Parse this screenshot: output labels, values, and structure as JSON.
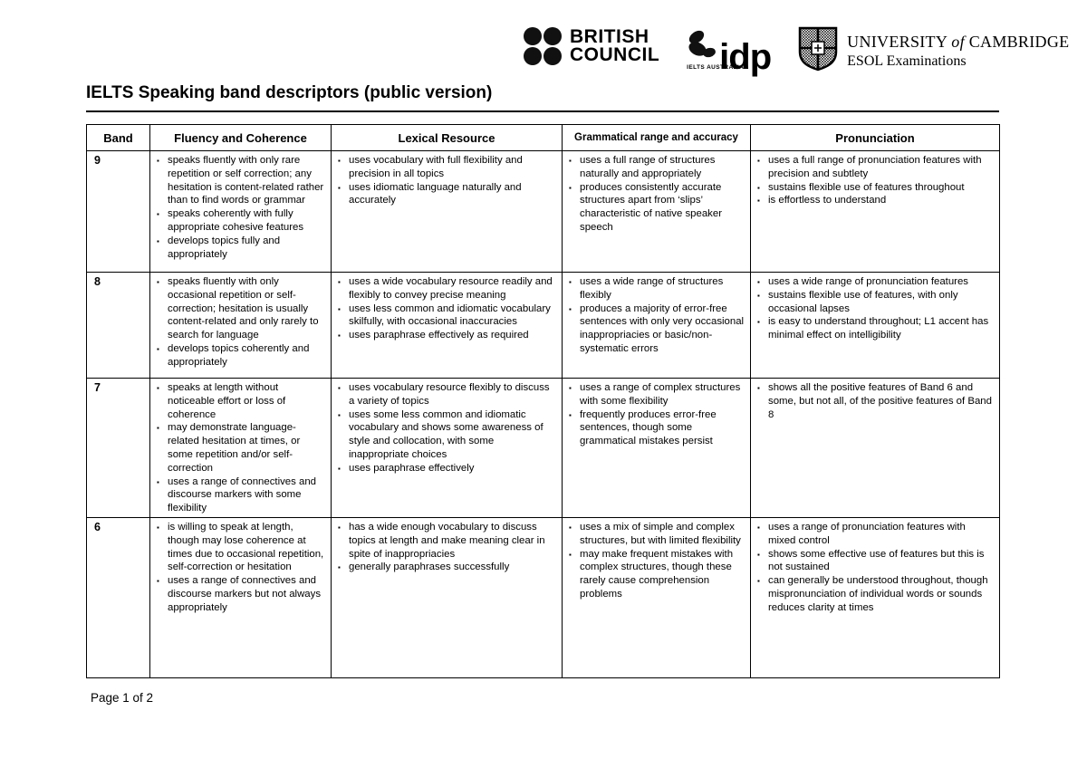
{
  "icons": {
    "bullet": "▪"
  },
  "header": {
    "british_council": {
      "line1": "BRITISH",
      "line2": "COUNCIL"
    },
    "idp": {
      "word": "idp",
      "subtext": "IELTS AUSTRALIA"
    },
    "cambridge": {
      "line1_a": "UNIVERSITY",
      "line1_b": "of",
      "line1_c": "CAMBRIDGE",
      "line2": "ESOL Examinations"
    },
    "title": "IELTS Speaking band descriptors (public version)"
  },
  "table": {
    "columns": [
      "Band",
      "Fluency and Coherence",
      "Lexical Resource",
      "Grammatical range and accuracy",
      "Pronunciation"
    ],
    "rows": [
      {
        "band": "9",
        "cells": [
          [
            "speaks fluently with only rare repetition or self correction; any hesitation is content-related rather than to find words or grammar",
            "speaks coherently with fully appropriate cohesive features",
            "develops topics fully and appropriately"
          ],
          [
            "uses vocabulary with full flexibility and precision in all topics",
            "uses idiomatic language naturally and accurately"
          ],
          [
            "uses a full range of structures naturally and appropriately",
            "produces consistently accurate structures apart from ‘slips’ characteristic of native speaker speech"
          ],
          [
            "uses a full range of pronunciation features with precision and subtlety",
            "sustains flexible use of features throughout",
            "is effortless to understand"
          ]
        ]
      },
      {
        "band": "8",
        "cells": [
          [
            "speaks fluently with only occasional repetition or self-correction; hesitation is usually content-related and only rarely to search for language",
            "develops topics coherently and appropriately"
          ],
          [
            "uses a wide vocabulary resource readily and flexibly to convey precise meaning",
            "uses less common and idiomatic vocabulary skilfully, with occasional inaccuracies",
            "uses paraphrase effectively as required"
          ],
          [
            "uses a wide range of structures flexibly",
            "produces a majority of error-free sentences with only very occasional inappropriacies or basic/non-systematic errors"
          ],
          [
            "uses a wide range of pronunciation features",
            "sustains flexible use of features, with only occasional lapses",
            "is easy to understand throughout; L1 accent has minimal effect on intelligibility"
          ]
        ]
      },
      {
        "band": "7",
        "cells": [
          [
            "speaks at length without noticeable effort or loss of coherence",
            "may demonstrate language-related hesitation at times, or some repetition and/or self-correction",
            "uses a range of connectives and discourse markers with some flexibility"
          ],
          [
            "uses vocabulary resource flexibly to discuss a variety of topics",
            "uses some less common and idiomatic vocabulary and shows some awareness of style and collocation, with some inappropriate choices",
            "uses paraphrase effectively"
          ],
          [
            "uses a range of complex structures with some flexibility",
            "frequently produces error-free sentences, though some grammatical mistakes persist"
          ],
          [
            "shows all the positive features of Band 6 and some, but not all, of the positive features of Band 8"
          ]
        ]
      },
      {
        "band": "6",
        "cells": [
          [
            "is willing to speak at length, though may lose coherence at times due to occasional repetition, self-correction or hesitation",
            "uses a range of connectives and discourse markers but not always appropriately"
          ],
          [
            "has a wide enough vocabulary to discuss topics at length and make meaning clear in spite of inappropriacies",
            "generally paraphrases successfully"
          ],
          [
            "uses a mix of simple and complex structures, but with limited flexibility",
            "may make frequent mistakes with complex structures, though these rarely cause comprehension problems"
          ],
          [
            "uses a range of pronunciation features with mixed control",
            "shows some effective use of features but this is not sustained",
            "can generally be understood throughout, though mispronunciation of individual words or sounds reduces clarity at times"
          ]
        ]
      }
    ]
  },
  "footer": {
    "page_label": "Page 1 of 2"
  }
}
